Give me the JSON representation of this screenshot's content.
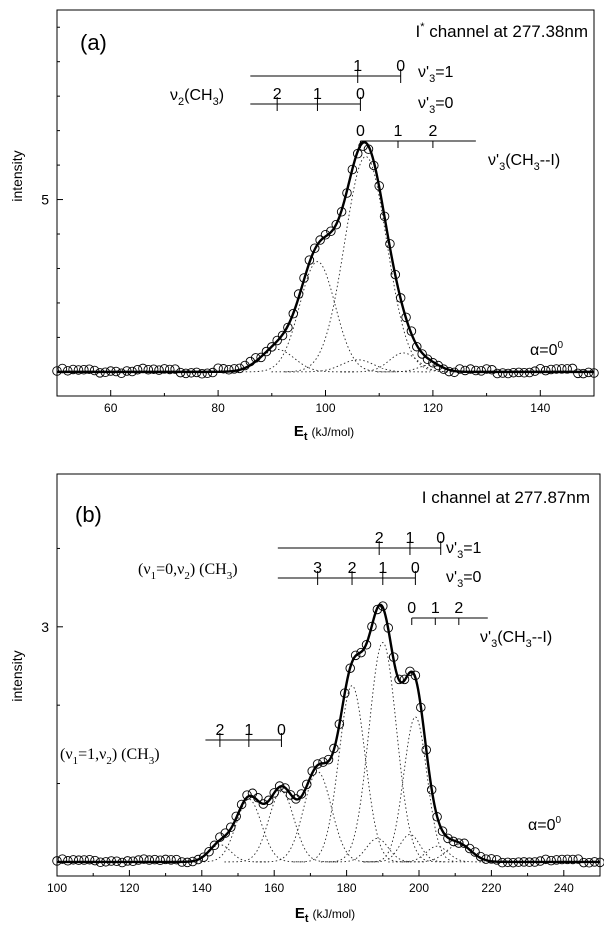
{
  "chart_data": [
    {
      "type": "scatter",
      "panel_label": "(a)",
      "channel_label": "I* channel at 277.38nm",
      "channel_base": "I",
      "channel_sup": "*",
      "channel_rest": " channel at 277.38nm",
      "ylabel": "intensity",
      "xlabel_main": "E",
      "xlabel_sub": "t",
      "xlabel_unit": "(kJ/mol)",
      "xlim": [
        50,
        150
      ],
      "ylim": [
        -0.7,
        10.5
      ],
      "xticks": [
        60,
        80,
        100,
        120,
        140
      ],
      "yticks": [
        5
      ],
      "alpha_label": "α=0⁰",
      "alpha_text": "α=0",
      "alpha_sup": "0",
      "fit_line": true,
      "peaks": [
        {
          "center": 91,
          "height": 0.65,
          "width": 3.2
        },
        {
          "center": 98.5,
          "height": 3.2,
          "width": 3.3
        },
        {
          "center": 106,
          "height": 0.35,
          "width": 3.0
        },
        {
          "center": 107.5,
          "height": 6.25,
          "width": 3.9
        },
        {
          "center": 114.5,
          "height": 0.55,
          "width": 2.6
        },
        {
          "center": 119.5,
          "height": 0.2,
          "width": 2.2
        }
      ],
      "ladders": [
        {
          "label": "ν'3=1",
          "x_start": 86,
          "x_end": 114,
          "marks": [
            {
              "x": 106,
              "label": "1"
            },
            {
              "x": 114,
              "label": "0"
            }
          ]
        },
        {
          "label": "ν'3=0",
          "x_start": 86,
          "x_end": 106.5,
          "group_label": "ν2(CH3)",
          "marks": [
            {
              "x": 91,
              "label": "2"
            },
            {
              "x": 98.5,
              "label": "1"
            },
            {
              "x": 106.5,
              "label": "0"
            }
          ]
        },
        {
          "label": "ν'3(CH3--I)",
          "x_start": 106.5,
          "x_end": 128,
          "marks": [
            {
              "x": 106.5,
              "label": "0"
            },
            {
              "x": 113.5,
              "label": "1"
            },
            {
              "x": 120,
              "label": "2"
            }
          ]
        }
      ],
      "text": {
        "nu3p1": "ν'3=1",
        "nu3p0": "ν'3=0",
        "nu3cm": "ν'3(CH3--I)",
        "nu2ch3": "ν2(CH3)"
      }
    },
    {
      "type": "scatter",
      "panel_label": "(b)",
      "channel_label": "I channel at 277.87nm",
      "ylabel": "intensity",
      "xlabel_main": "E",
      "xlabel_sub": "t",
      "xlabel_unit": "(kJ/mol)",
      "xlim": [
        100,
        250
      ],
      "ylim": [
        -0.18,
        4.95
      ],
      "xticks": [
        100,
        120,
        140,
        160,
        180,
        200,
        220,
        240
      ],
      "yticks": [
        3
      ],
      "alpha_label": "α=0⁰",
      "alpha_text": "α=0",
      "alpha_sup": "0",
      "fit_line": true,
      "peaks": [
        {
          "center": 145,
          "height": 0.22,
          "width": 3.0
        },
        {
          "center": 153,
          "height": 0.8,
          "width": 3.5
        },
        {
          "center": 162,
          "height": 0.9,
          "width": 3.5
        },
        {
          "center": 172,
          "height": 1.15,
          "width": 3.8
        },
        {
          "center": 181.5,
          "height": 2.25,
          "width": 3.6
        },
        {
          "center": 188.5,
          "height": 0.3,
          "width": 3.0
        },
        {
          "center": 190,
          "height": 2.8,
          "width": 3.8
        },
        {
          "center": 197.5,
          "height": 0.35,
          "width": 2.8
        },
        {
          "center": 199,
          "height": 1.85,
          "width": 3.2
        },
        {
          "center": 205,
          "height": 0.2,
          "width": 3.0
        },
        {
          "center": 211,
          "height": 0.22,
          "width": 3.5
        }
      ],
      "ladders": [
        {
          "label": "ν'3=1",
          "x_start": 161,
          "x_end": 206,
          "marks": [
            {
              "x": 189,
              "label": "2"
            },
            {
              "x": 197.5,
              "label": "1"
            },
            {
              "x": 206,
              "label": "0"
            }
          ]
        },
        {
          "label": "ν'3=0",
          "x_start": 161,
          "x_end": 199,
          "group_label": "(ν1=0,ν2) (CH3)",
          "marks": [
            {
              "x": 172,
              "label": "3"
            },
            {
              "x": 181.5,
              "label": "2"
            },
            {
              "x": 190,
              "label": "1"
            },
            {
              "x": 199,
              "label": "0"
            }
          ]
        },
        {
          "label": "ν'3(CH3--I)",
          "x_start": 198,
          "x_end": 219,
          "marks": [
            {
              "x": 198,
              "label": "0"
            },
            {
              "x": 204.5,
              "label": "1"
            },
            {
              "x": 211,
              "label": "2"
            }
          ]
        },
        {
          "label": "",
          "x_start": 141,
          "x_end": 162,
          "group_label": "(ν1=1,ν2) (CH3)",
          "marks": [
            {
              "x": 145,
              "label": "2"
            },
            {
              "x": 153,
              "label": "1"
            },
            {
              "x": 162,
              "label": "0"
            }
          ]
        }
      ],
      "text": {
        "nu3p1": "ν'3=1",
        "nu3p0": "ν'3=0",
        "nu3cm": "ν'3(CH3--I)",
        "nu1_0": "(ν1=0,ν2) (CH3)",
        "nu1_1": "(ν1=1,ν2) (CH3)"
      }
    }
  ]
}
